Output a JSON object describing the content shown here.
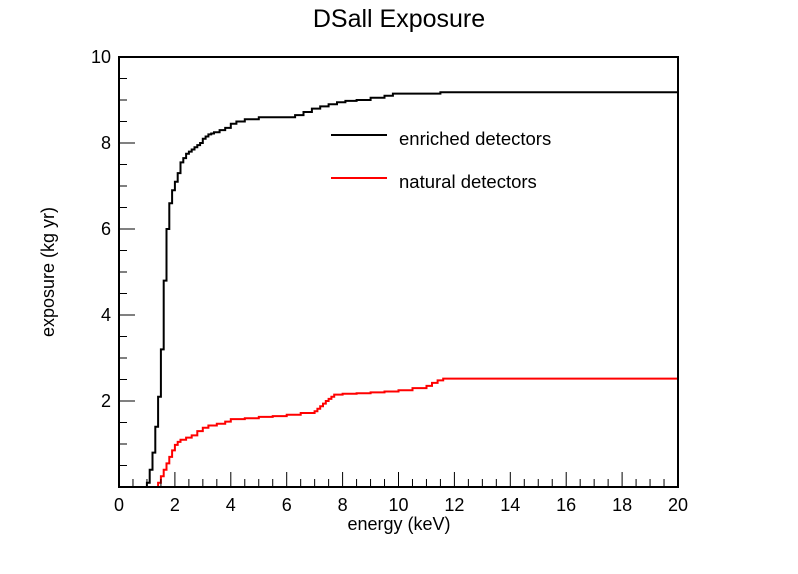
{
  "chart_data": {
    "type": "line",
    "title": "DSall Exposure",
    "xlabel": "energy (keV)",
    "ylabel": "exposure (kg yr)",
    "xlim": [
      0,
      20
    ],
    "ylim": [
      0,
      10
    ],
    "x_ticks": [
      "0",
      "2",
      "4",
      "6",
      "8",
      "10",
      "12",
      "14",
      "16",
      "18",
      "20"
    ],
    "y_ticks": [
      "2",
      "4",
      "6",
      "8",
      "10"
    ],
    "y_tick_values": [
      2,
      4,
      6,
      8,
      10
    ],
    "x_tick_values": [
      0,
      2,
      4,
      6,
      8,
      10,
      12,
      14,
      16,
      18,
      20
    ],
    "grid": false,
    "legend_position": "upper-right",
    "series": [
      {
        "name": "enriched detectors",
        "color": "#000000",
        "step": true,
        "x": [
          0,
          1.0,
          1.1,
          1.2,
          1.3,
          1.4,
          1.5,
          1.6,
          1.7,
          1.8,
          1.9,
          2.0,
          2.1,
          2.2,
          2.3,
          2.4,
          2.5,
          2.6,
          2.7,
          2.8,
          2.9,
          3.0,
          3.1,
          3.2,
          3.3,
          3.4,
          3.6,
          3.8,
          4.0,
          4.2,
          4.5,
          5.0,
          6.0,
          6.3,
          6.6,
          6.9,
          7.2,
          7.5,
          7.8,
          8.1,
          8.5,
          9.0,
          9.5,
          9.8,
          11.5,
          20
        ],
        "y": [
          0,
          0.1,
          0.4,
          0.8,
          1.4,
          2.1,
          3.2,
          4.8,
          6.0,
          6.6,
          6.9,
          7.1,
          7.3,
          7.55,
          7.65,
          7.75,
          7.8,
          7.85,
          7.9,
          7.95,
          8.0,
          8.1,
          8.15,
          8.2,
          8.22,
          8.25,
          8.3,
          8.35,
          8.45,
          8.5,
          8.55,
          8.6,
          8.6,
          8.65,
          8.72,
          8.8,
          8.85,
          8.9,
          8.95,
          8.98,
          9.0,
          9.05,
          9.1,
          9.15,
          9.18,
          9.18
        ]
      },
      {
        "name": "natural detectors",
        "color": "#ff0000",
        "step": true,
        "x": [
          0,
          1.4,
          1.5,
          1.6,
          1.7,
          1.8,
          1.9,
          2.0,
          2.1,
          2.2,
          2.4,
          2.6,
          2.8,
          3.0,
          3.2,
          3.5,
          3.8,
          4.0,
          4.5,
          5.0,
          5.5,
          6.0,
          6.5,
          7.0,
          7.1,
          7.2,
          7.3,
          7.4,
          7.5,
          7.6,
          7.7,
          8.0,
          8.5,
          9.0,
          9.5,
          10.0,
          10.5,
          11.0,
          11.2,
          11.4,
          11.6,
          20
        ],
        "y": [
          0,
          0.1,
          0.25,
          0.4,
          0.55,
          0.7,
          0.85,
          0.98,
          1.05,
          1.1,
          1.15,
          1.2,
          1.3,
          1.38,
          1.43,
          1.47,
          1.52,
          1.58,
          1.6,
          1.63,
          1.65,
          1.68,
          1.72,
          1.76,
          1.82,
          1.88,
          1.94,
          2.0,
          2.05,
          2.1,
          2.15,
          2.17,
          2.18,
          2.2,
          2.22,
          2.25,
          2.3,
          2.35,
          2.42,
          2.48,
          2.52,
          2.52
        ]
      }
    ]
  }
}
